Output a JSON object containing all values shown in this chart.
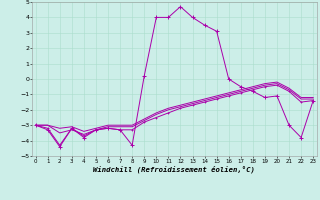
{
  "xlabel": "Windchill (Refroidissement éolien,°C)",
  "xlim": [
    0,
    23
  ],
  "ylim": [
    -5,
    5
  ],
  "xticks": [
    0,
    1,
    2,
    3,
    4,
    5,
    6,
    7,
    8,
    9,
    10,
    11,
    12,
    13,
    14,
    15,
    16,
    17,
    18,
    19,
    20,
    21,
    22,
    23
  ],
  "yticks": [
    -5,
    -4,
    -3,
    -2,
    -1,
    0,
    1,
    2,
    3,
    4,
    5
  ],
  "background_color": "#cceee8",
  "grid_color": "#aaddcc",
  "line_color": "#aa00aa",
  "line1": [
    -3.0,
    -3.3,
    -4.4,
    -3.2,
    -3.8,
    -3.3,
    -3.2,
    -3.3,
    -4.3,
    0.2,
    4.0,
    4.0,
    4.7,
    4.0,
    3.5,
    3.1,
    0.0,
    -0.5,
    -0.8,
    -1.2,
    -1.1,
    -3.0,
    -3.8,
    -1.4
  ],
  "line2": [
    -3.0,
    -3.2,
    -4.3,
    -3.2,
    -3.7,
    -3.3,
    -3.2,
    -3.3,
    -3.3,
    -2.8,
    -2.5,
    -2.2,
    -1.9,
    -1.7,
    -1.5,
    -1.3,
    -1.1,
    -0.9,
    -0.7,
    -0.5,
    -0.4,
    -0.8,
    -1.5,
    -1.4
  ],
  "line3": [
    -3.0,
    -3.0,
    -3.5,
    -3.3,
    -3.6,
    -3.3,
    -3.1,
    -3.1,
    -3.1,
    -2.7,
    -2.3,
    -2.0,
    -1.8,
    -1.6,
    -1.4,
    -1.2,
    -1.0,
    -0.8,
    -0.6,
    -0.4,
    -0.3,
    -0.7,
    -1.3,
    -1.3
  ],
  "line4": [
    -3.0,
    -3.0,
    -3.2,
    -3.1,
    -3.4,
    -3.2,
    -3.0,
    -3.0,
    -3.0,
    -2.6,
    -2.2,
    -1.9,
    -1.7,
    -1.5,
    -1.3,
    -1.1,
    -0.9,
    -0.7,
    -0.5,
    -0.3,
    -0.2,
    -0.6,
    -1.2,
    -1.2
  ]
}
